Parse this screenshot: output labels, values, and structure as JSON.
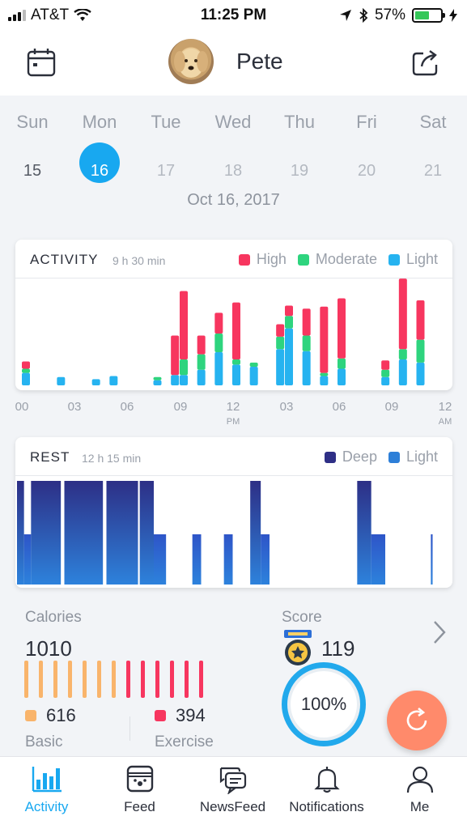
{
  "status_bar": {
    "carrier": "AT&T",
    "time": "11:25 PM",
    "battery_percent": "57%",
    "battery_level": 0.57
  },
  "header": {
    "pet_name": "Pete",
    "calendar_icon": "calendar-icon",
    "share_icon": "share-icon"
  },
  "week": {
    "days": [
      {
        "name": "Sun",
        "num": "15",
        "state": "past"
      },
      {
        "name": "Mon",
        "num": "16",
        "state": "active"
      },
      {
        "name": "Tue",
        "num": "17",
        "state": "future"
      },
      {
        "name": "Wed",
        "num": "18",
        "state": "future"
      },
      {
        "name": "Thu",
        "num": "19",
        "state": "future"
      },
      {
        "name": "Fri",
        "num": "20",
        "state": "future"
      },
      {
        "name": "Sat",
        "num": "21",
        "state": "future"
      }
    ],
    "selected_date": "Oct 16, 2017"
  },
  "activity": {
    "title": "ACTIVITY",
    "duration": "9 h 30 min",
    "legend": [
      {
        "label": "High",
        "color": "#f7365f"
      },
      {
        "label": "Moderate",
        "color": "#2ed47e"
      },
      {
        "label": "Light",
        "color": "#26b3f0"
      }
    ],
    "axis_ticks": [
      {
        "label": "00",
        "sub": ""
      },
      {
        "label": "03",
        "sub": ""
      },
      {
        "label": "06",
        "sub": ""
      },
      {
        "label": "09",
        "sub": ""
      },
      {
        "label": "12",
        "sub": "PM"
      },
      {
        "label": "03",
        "sub": ""
      },
      {
        "label": "06",
        "sub": ""
      },
      {
        "label": "09",
        "sub": ""
      },
      {
        "label": "12",
        "sub": "AM"
      }
    ]
  },
  "rest": {
    "title": "REST",
    "duration": "12 h 15 min",
    "legend": [
      {
        "label": "Deep",
        "color": "#2e2f86"
      },
      {
        "label": "Light",
        "color": "#2d7fd8"
      }
    ]
  },
  "chart_data": [
    {
      "type": "bar",
      "stacked": true,
      "title": "ACTIVITY",
      "x": [
        0,
        2,
        4,
        5,
        7.5,
        8.5,
        9,
        10,
        11,
        12,
        13,
        14.5,
        15,
        16,
        17,
        18,
        20.5,
        21.5,
        22.5
      ],
      "series": [
        {
          "name": "Light",
          "values": [
            12,
            8,
            6,
            9,
            5,
            10,
            10,
            15,
            32,
            20,
            18,
            35,
            55,
            33,
            9,
            16,
            8,
            25,
            22
          ]
        },
        {
          "name": "Moderate",
          "values": [
            4,
            0,
            0,
            0,
            3,
            0,
            15,
            15,
            18,
            5,
            4,
            12,
            12,
            15,
            3,
            10,
            7,
            10,
            22
          ]
        },
        {
          "name": "High",
          "values": [
            7,
            0,
            0,
            0,
            0,
            38,
            66,
            18,
            20,
            55,
            0,
            12,
            10,
            26,
            64,
            58,
            9,
            68,
            38
          ]
        }
      ],
      "xlim": [
        0,
        24
      ],
      "ylim": [
        0,
        100
      ]
    },
    {
      "type": "bar",
      "title": "REST",
      "segments": [
        {
          "start": 0,
          "end": 0.4,
          "level": "Deep"
        },
        {
          "start": 0.4,
          "end": 0.8,
          "level": "Light"
        },
        {
          "start": 0.8,
          "end": 2.5,
          "level": "Deep"
        },
        {
          "start": 2.7,
          "end": 4.9,
          "level": "Deep"
        },
        {
          "start": 5.1,
          "end": 6.9,
          "level": "Deep"
        },
        {
          "start": 7.0,
          "end": 7.8,
          "level": "Deep"
        },
        {
          "start": 7.8,
          "end": 8.5,
          "level": "Light"
        },
        {
          "start": 10.0,
          "end": 10.5,
          "level": "Light"
        },
        {
          "start": 11.8,
          "end": 12.3,
          "level": "Light"
        },
        {
          "start": 13.3,
          "end": 13.9,
          "level": "Deep"
        },
        {
          "start": 13.9,
          "end": 14.4,
          "level": "Light"
        },
        {
          "start": 19.4,
          "end": 20.2,
          "level": "Deep"
        },
        {
          "start": 20.2,
          "end": 21.0,
          "level": "Light"
        },
        {
          "start": 23.6,
          "end": 23.7,
          "level": "Light"
        }
      ],
      "xlim": [
        0,
        24
      ]
    }
  ],
  "stats": {
    "calories_label": "Calories",
    "calories_value": "1010",
    "basic_value": "616",
    "basic_label": "Basic",
    "exercise_value": "394",
    "exercise_label": "Exercise",
    "score_label": "Score",
    "score_value": "119",
    "percent": "100%",
    "basic_color": "#f9b46b",
    "exercise_color": "#f7365f"
  },
  "tabs": [
    {
      "label": "Activity",
      "icon": "bar-chart-icon",
      "active": true
    },
    {
      "label": "Feed",
      "icon": "food-bowl-icon",
      "active": false
    },
    {
      "label": "NewsFeed",
      "icon": "chat-bubbles-icon",
      "active": false
    },
    {
      "label": "Notifications",
      "icon": "bell-icon",
      "active": false
    },
    {
      "label": "Me",
      "icon": "person-icon",
      "active": false
    }
  ]
}
